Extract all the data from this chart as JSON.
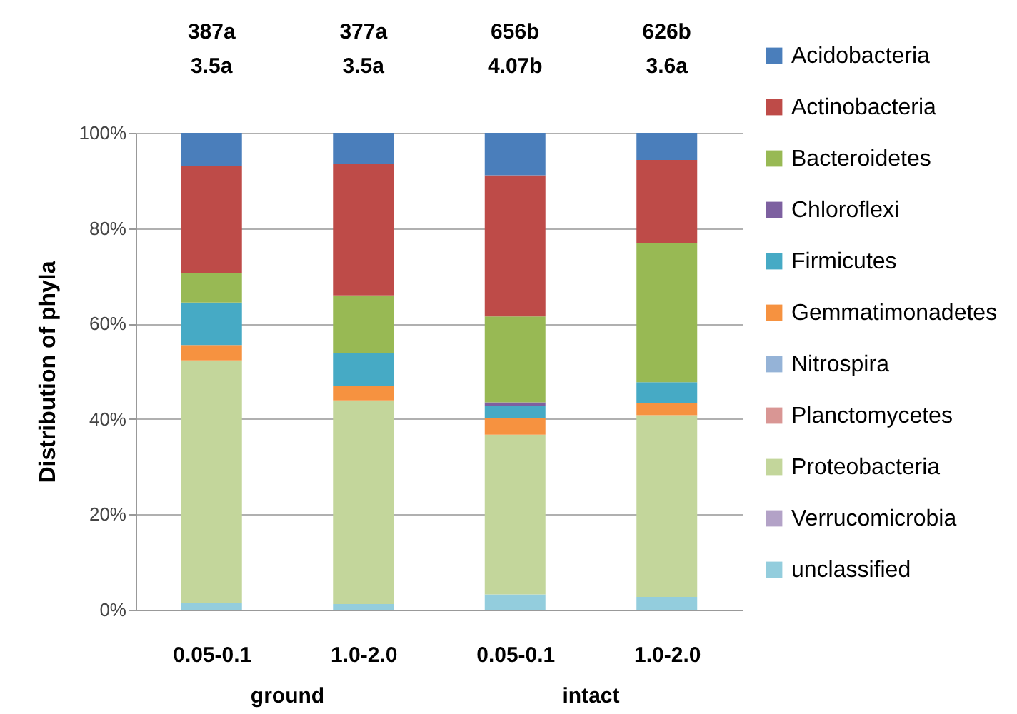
{
  "chart_data": {
    "type": "bar",
    "stacked": true,
    "ylabel": "Distribution of phyla",
    "categories": [
      "0.05-0.1",
      "1.0-2.0",
      "0.05-0.1",
      "1.0-2.0"
    ],
    "series": [
      {
        "name": "unclassified",
        "color": "#93cddd",
        "values": [
          1.4,
          1.2,
          3.2,
          2.7
        ]
      },
      {
        "name": "Verrucomicrobia",
        "color": "#b3a2c7",
        "values": [
          null,
          null,
          null,
          null
        ]
      },
      {
        "name": "Proteobacteria",
        "color": "#c3d69b",
        "values": [
          50.9,
          42.7,
          33.5,
          38.1
        ]
      },
      {
        "name": "Planctomycetes",
        "color": "#d99694",
        "values": [
          null,
          null,
          null,
          null
        ]
      },
      {
        "name": "Nitrospira",
        "color": "#95b3d7",
        "values": [
          null,
          null,
          null,
          null
        ]
      },
      {
        "name": "Gemmatimonadetes",
        "color": "#f69240",
        "values": [
          3.2,
          3.0,
          3.5,
          2.5
        ]
      },
      {
        "name": "Firmicutes",
        "color": "#46aac5",
        "values": [
          8.9,
          6.9,
          2.5,
          4.4
        ]
      },
      {
        "name": "Chloroflexi",
        "color": "#7d60a0",
        "values": [
          null,
          null,
          0.8,
          null
        ]
      },
      {
        "name": "Bacteroidetes",
        "color": "#98b954",
        "values": [
          6.1,
          12.1,
          18.0,
          29.1
        ]
      },
      {
        "name": "Actinobacteria",
        "color": "#be4b48",
        "values": [
          22.6,
          27.5,
          29.6,
          17.5
        ]
      },
      {
        "name": "Acidobacteria",
        "color": "#4a7ebb",
        "values": [
          6.9,
          6.6,
          8.9,
          5.7
        ]
      }
    ],
    "ylim": [
      0,
      100
    ],
    "yticks": [
      {
        "value": 0,
        "label": "0%"
      },
      {
        "value": 20,
        "label": "20%"
      },
      {
        "value": 40,
        "label": "40%"
      },
      {
        "value": 60,
        "label": "60%"
      },
      {
        "value": 80,
        "label": "80%"
      },
      {
        "value": 100,
        "label": "100%"
      }
    ],
    "grid": "y",
    "legend": "right",
    "annotations": [
      "387a\n3.5a",
      "377a\n3.5a",
      "656b\n4.07b",
      "626b\n3.6a",
      "ground",
      "intact"
    ]
  }
}
